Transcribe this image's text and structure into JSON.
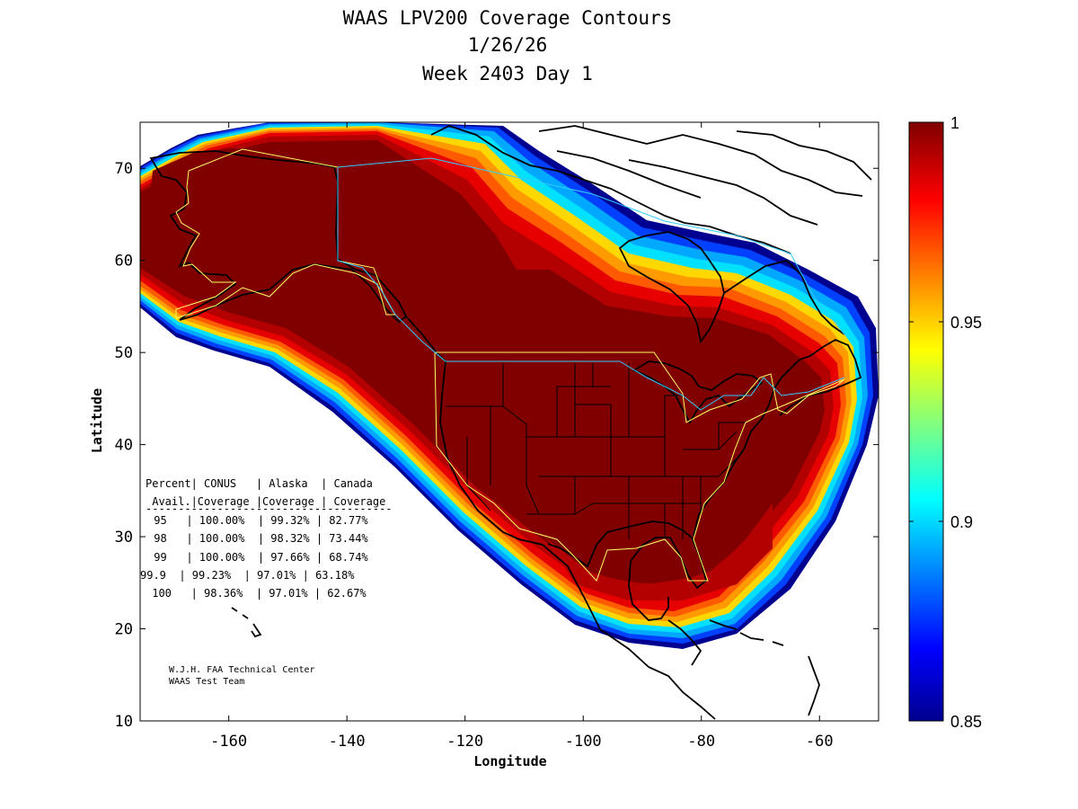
{
  "title": {
    "line1": "WAAS LPV200 Coverage Contours",
    "line2": "1/26/26",
    "line3": "Week 2403 Day 1"
  },
  "axes": {
    "xlabel": "Longitude",
    "ylabel": "Latitude",
    "xlim": [
      -175,
      -50
    ],
    "ylim": [
      10,
      75
    ],
    "xticks": [
      -160,
      -140,
      -120,
      -100,
      -80,
      -60
    ],
    "yticks": [
      10,
      20,
      30,
      40,
      50,
      60,
      70
    ]
  },
  "colorbar": {
    "range": [
      0.85,
      1
    ],
    "ticks": [
      {
        "value": 1,
        "label": "1"
      },
      {
        "value": 0.95,
        "label": "0.95"
      },
      {
        "value": 0.9,
        "label": "0.9"
      },
      {
        "value": 0.85,
        "label": "0.85"
      }
    ]
  },
  "table": {
    "header1": "Percent| CONUS   | Alaska  | Canada",
    "header2": " Avail.|Coverage |Coverage | Coverage",
    "rule": "--------------------------------------",
    "rows": [
      " 95   | 100.00%  | 99.32% | 82.77%",
      " 98   | 100.00%  | 98.32% | 73.44%",
      " 99   | 100.00%  | 97.66% | 68.74%",
      "99.9  | 99.23%  | 97.01% | 63.18%",
      " 100   | 98.36%  | 97.01% | 62.67%"
    ]
  },
  "credits": {
    "line1": "W.J.H. FAA Technical Center",
    "line2": "WAAS Test Team"
  },
  "colors": {
    "full": "#800000",
    "red1": "#b30000",
    "red2": "#e60000",
    "orange": "#ff5a00",
    "orange2": "#ff9a00",
    "yellow": "#ffd800",
    "cyan": "#00e0ff",
    "lightblue": "#00a8ff",
    "blue": "#0040ff",
    "navy": "#000090",
    "service_volume": "#ffff66",
    "boundary": "#33ccff"
  }
}
